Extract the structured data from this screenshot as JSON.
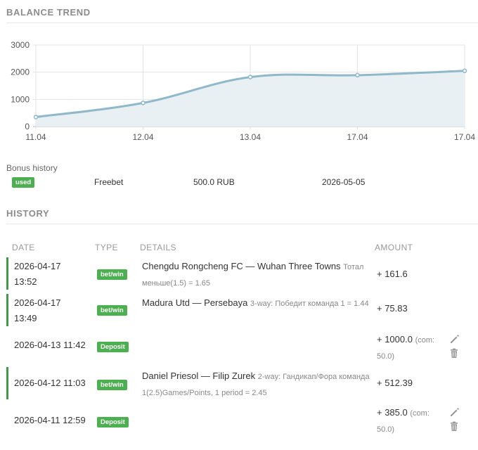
{
  "balance_trend": {
    "title": "BALANCE TREND",
    "chart_data": {
      "type": "area",
      "categories": [
        "11.04",
        "12.04",
        "13.04",
        "17.04",
        "17.04"
      ],
      "values": [
        350,
        870,
        1820,
        1890,
        2050
      ],
      "ylim": [
        0,
        3000
      ],
      "yticks": [
        "0",
        "1000",
        "2000",
        "3000"
      ],
      "grid": true,
      "line_color": "#8fb8c9",
      "fill_color": "#e8f0f4"
    }
  },
  "bonus": {
    "label": "Bonus history",
    "status": "used",
    "type": "Freebet",
    "amount": "500.0 RUB",
    "date": "2026-05-05"
  },
  "history": {
    "title": "HISTORY",
    "columns": {
      "date": "DATE",
      "type": "TYPE",
      "details": "DETAILS",
      "amount": "AMOUNT"
    },
    "rows": [
      {
        "date": "2026-04-17",
        "time": "13:52",
        "type": "bet/win",
        "match": "Chengdu Rongcheng FC — Wuhan Three Towns",
        "market": "Тотал меньше(1.5) = 1.65",
        "amount": "+ 161.6",
        "commission": ""
      },
      {
        "date": "2026-04-17",
        "time": "13:49",
        "type": "bet/win",
        "match": "Madura Utd — Persebaya",
        "market": "3-way: Победит команда 1 = 1.44",
        "amount": "+ 75.83",
        "commission": ""
      },
      {
        "date": "2026-04-13 11:42",
        "time": "",
        "type": "Deposit",
        "match": "",
        "market": "",
        "amount": "+ 1000.0",
        "commission": "(com: 50.0)"
      },
      {
        "date": "2026-04-12 11:03",
        "time": "",
        "type": "bet/win",
        "match": "Daniel Priesol — Filip Zurek",
        "market": "2-way: Гандикап/Фора команда 1(2.5)Games/Points, 1 period = 2.45",
        "amount": "+ 512.39",
        "commission": ""
      },
      {
        "date": "2026-04-11 12:59",
        "time": "",
        "type": "Deposit",
        "match": "",
        "market": "",
        "amount": "+ 385.0",
        "commission": "(com: 50.0)"
      }
    ]
  },
  "icons": {
    "edit": "pencil-icon",
    "delete": "trash-icon"
  }
}
